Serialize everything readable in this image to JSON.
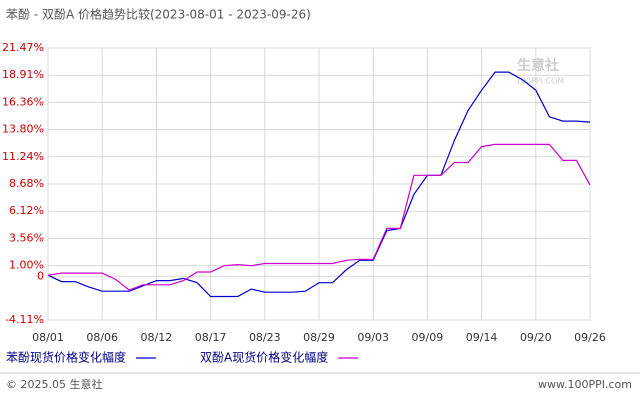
{
  "chart_data": {
    "type": "line",
    "title": "苯酚 - 双酚A 价格趋势比较(2023-08-01 - 2023-09-26)",
    "watermark": "生意社",
    "watermark_sub": "100PPI.COM",
    "footer_left": "© 2025.05 生意社",
    "footer_right": "www.100PPI.com",
    "categories": [
      "08/01",
      null,
      null,
      null,
      "08/06",
      null,
      null,
      null,
      "08/12",
      null,
      null,
      null,
      "08/17",
      null,
      null,
      null,
      "08/23",
      null,
      null,
      null,
      "08/29",
      null,
      null,
      null,
      "09/03",
      null,
      null,
      null,
      "09/09",
      null,
      null,
      null,
      "09/14",
      null,
      null,
      null,
      "09/20",
      null,
      null,
      null,
      "09/26"
    ],
    "series": [
      {
        "name": "苯酚现货价格变化幅度",
        "color": "#0000cc",
        "values": [
          0.1,
          -0.5,
          -0.5,
          -1.0,
          -1.4,
          -1.4,
          -1.4,
          -0.9,
          -0.4,
          -0.4,
          -0.2,
          -0.6,
          -1.9,
          -1.9,
          -1.9,
          -1.2,
          -1.5,
          -1.5,
          -1.5,
          -1.4,
          -0.6,
          -0.6,
          0.6,
          1.5,
          1.5,
          4.3,
          4.5,
          7.7,
          9.5,
          9.5,
          12.8,
          15.6,
          17.5,
          19.2,
          19.2,
          18.5,
          17.5,
          15.0,
          14.6,
          14.6,
          14.5
        ]
      },
      {
        "name": "双酚A现货价格变化幅度",
        "color": "#cc00cc",
        "values": [
          0.1,
          0.3,
          0.3,
          0.3,
          0.3,
          -0.3,
          -1.3,
          -0.8,
          -0.8,
          -0.8,
          -0.4,
          0.4,
          0.4,
          1.0,
          1.1,
          1.0,
          1.2,
          1.2,
          1.2,
          1.2,
          1.2,
          1.2,
          1.5,
          1.6,
          1.6,
          4.5,
          4.5,
          9.5,
          9.5,
          9.5,
          10.7,
          10.7,
          12.2,
          12.4,
          12.4,
          12.4,
          12.4,
          12.4,
          10.9,
          10.9,
          8.6
        ]
      }
    ],
    "ylim": [
      -4.11,
      21.47
    ],
    "yticks": [
      {
        "value": -4.11,
        "label": "-4.11%"
      },
      0,
      {
        "value": 1.0,
        "label": "1.00%"
      },
      {
        "value": 3.56,
        "label": "3.56%"
      },
      {
        "value": 6.12,
        "label": "6.12%"
      },
      {
        "value": 8.68,
        "label": "8.68%"
      },
      {
        "value": 11.24,
        "label": "11.24%"
      },
      {
        "value": 13.8,
        "label": "13.80%"
      },
      {
        "value": 16.36,
        "label": "16.36%"
      },
      {
        "value": 18.91,
        "label": "18.91%"
      },
      {
        "value": 21.47,
        "label": "21.47%"
      }
    ],
    "grid": true
  }
}
